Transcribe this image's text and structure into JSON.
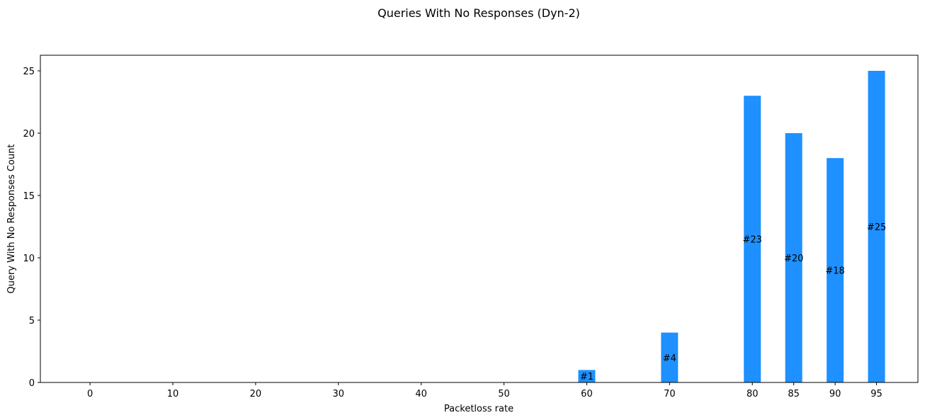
{
  "chart_data": {
    "type": "bar",
    "title": "Queries With No Responses (Dyn-2)",
    "xlabel": "Packetloss rate",
    "ylabel": "Query With No Responses Count",
    "x_ticks": [
      0,
      10,
      20,
      30,
      40,
      50,
      60,
      70,
      80,
      85,
      90,
      95
    ],
    "y_ticks": [
      0,
      5,
      10,
      15,
      20,
      25
    ],
    "xlim": [
      -6,
      100
    ],
    "ylim": [
      0,
      26.25
    ],
    "bar_color": "#1E90FF",
    "grid": false,
    "bars": [
      {
        "x": 60,
        "value": 1,
        "label": "#1"
      },
      {
        "x": 70,
        "value": 4,
        "label": "#4"
      },
      {
        "x": 80,
        "value": 23,
        "label": "#23"
      },
      {
        "x": 85,
        "value": 20,
        "label": "#20"
      },
      {
        "x": 90,
        "value": 18,
        "label": "#18"
      },
      {
        "x": 95,
        "value": 25,
        "label": "#25"
      }
    ]
  }
}
